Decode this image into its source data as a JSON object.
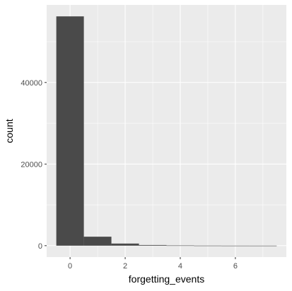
{
  "chart_data": {
    "type": "bar",
    "title": "",
    "xlabel": "forgetting_events",
    "ylabel": "count",
    "bin_width": 1,
    "x": [
      0,
      1,
      2,
      3,
      4,
      5,
      6,
      7
    ],
    "values": [
      56200,
      2200,
      520,
      160,
      50,
      15,
      5,
      2
    ],
    "xlim": [
      -0.85,
      7.85
    ],
    "ylim": [
      -2800,
      59000
    ],
    "x_ticks": [
      0,
      2,
      4,
      6
    ],
    "x_tick_labels": [
      "0",
      "2",
      "4",
      "6"
    ],
    "y_ticks": [
      0,
      20000,
      40000
    ],
    "y_tick_labels": [
      "0",
      "20000",
      "40000"
    ],
    "grid": true,
    "colors": {
      "panel": "#ebebeb",
      "grid_major": "#ffffff",
      "bar": "#4a4a4a",
      "tick": "#333333"
    }
  }
}
